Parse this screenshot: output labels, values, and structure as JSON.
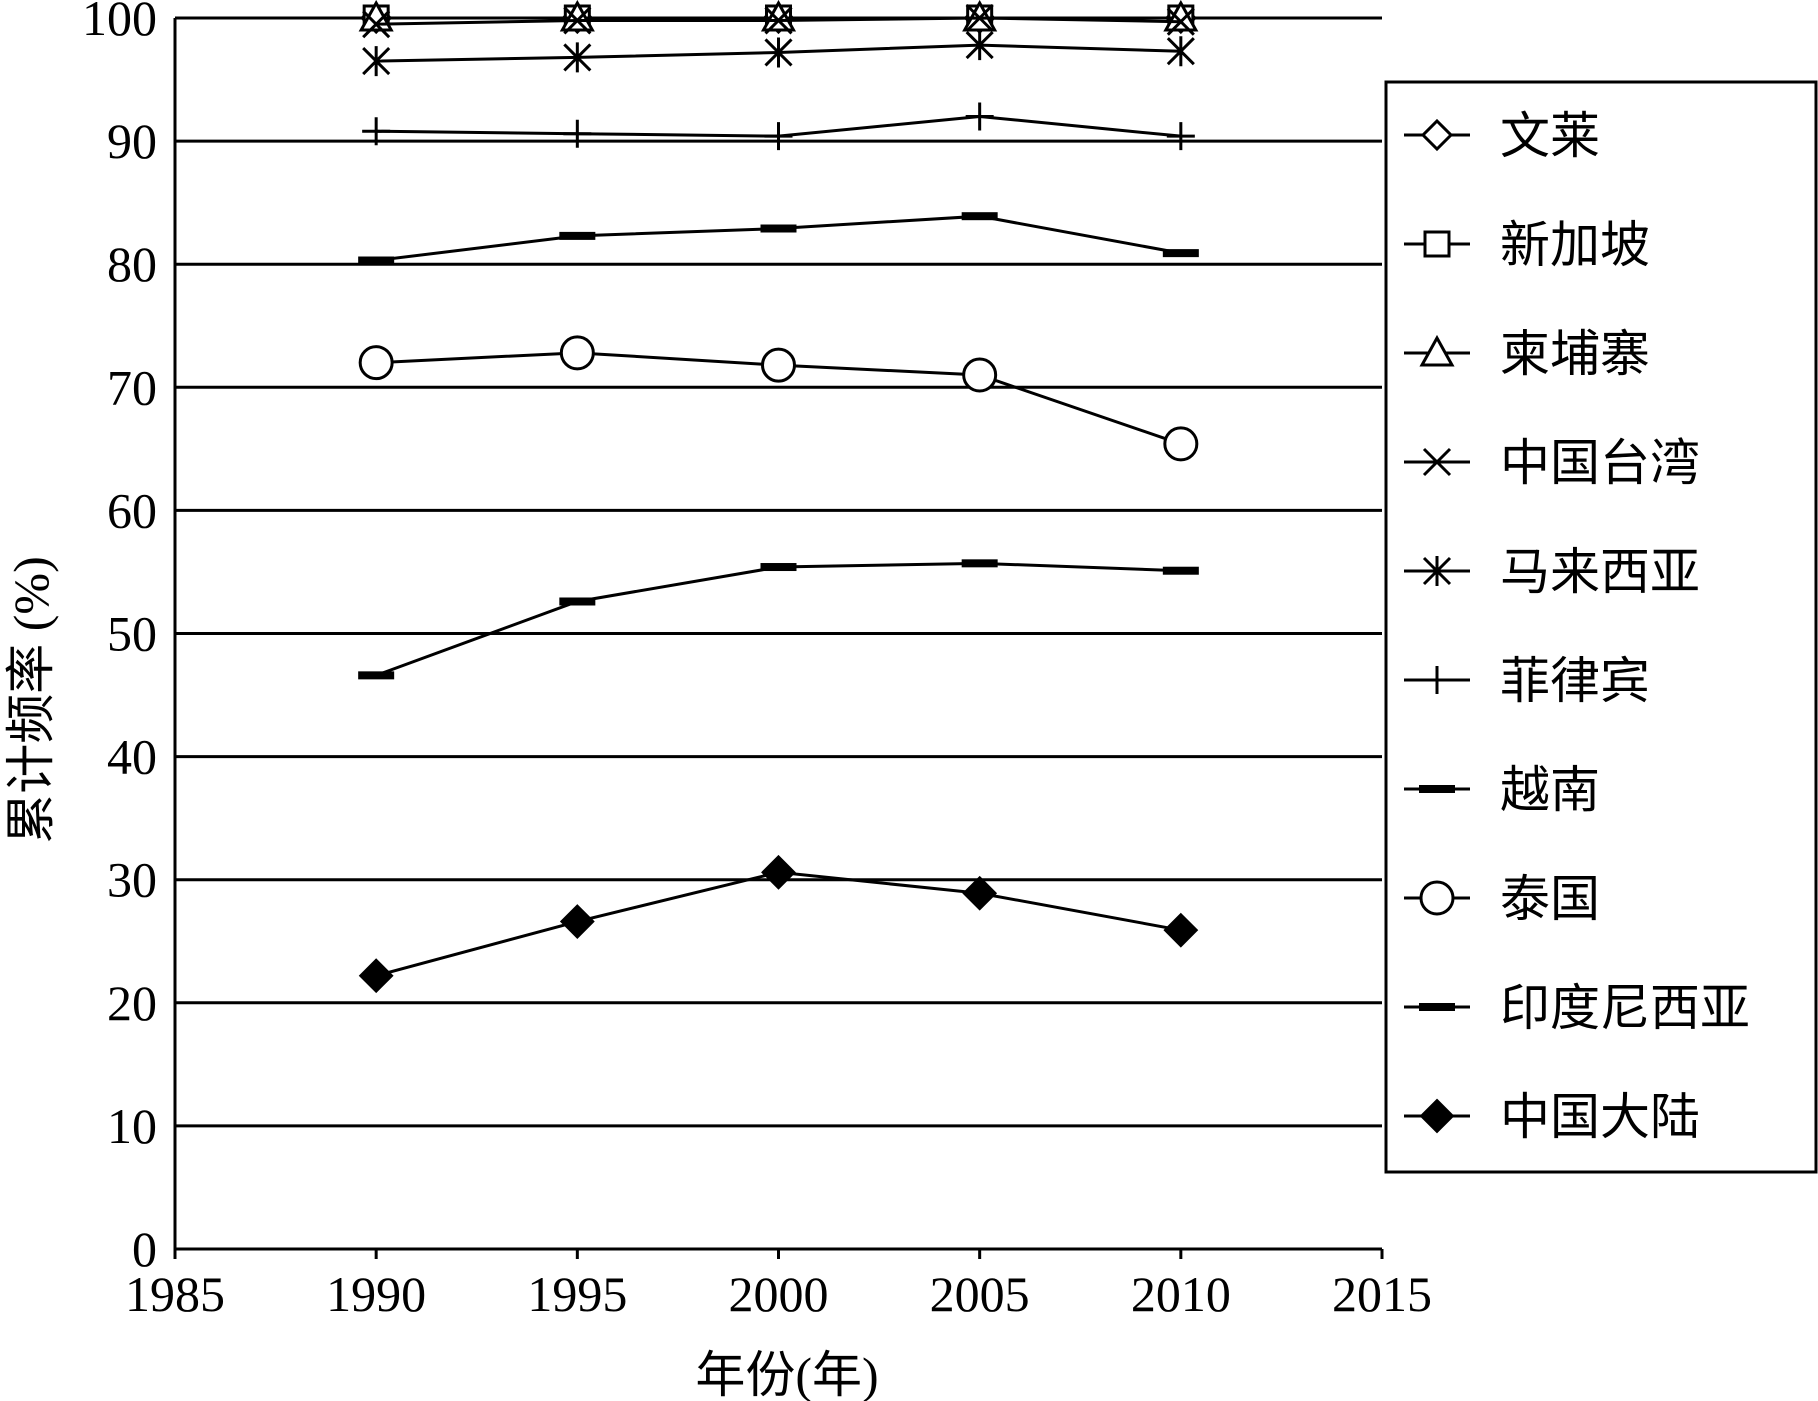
{
  "chart_data": {
    "type": "line",
    "title": "",
    "xlabel": "年份(年)",
    "ylabel": "累计频率 (%)",
    "xlim": [
      1985,
      2015
    ],
    "ylim": [
      0,
      100
    ],
    "x_ticks": [
      "1985",
      "1990",
      "1995",
      "2000",
      "2005",
      "2010",
      "2015"
    ],
    "y_ticks": [
      "0",
      "10",
      "20",
      "30",
      "40",
      "50",
      "60",
      "70",
      "80",
      "90",
      "100"
    ],
    "grid": "horizontal",
    "legend_position": "right",
    "x": [
      1990,
      1995,
      2000,
      2005,
      2010
    ],
    "series": [
      {
        "name": "文莱",
        "marker": "diamond-open",
        "values": [
          100,
          100,
          100,
          100,
          100
        ]
      },
      {
        "name": "新加坡",
        "marker": "square-open",
        "values": [
          100,
          100,
          100,
          100,
          100
        ]
      },
      {
        "name": "柬埔寨",
        "marker": "triangle-open",
        "values": [
          100,
          100,
          100,
          100,
          100
        ]
      },
      {
        "name": "中国台湾",
        "marker": "x",
        "values": [
          99.5,
          99.8,
          99.8,
          100,
          99.7
        ]
      },
      {
        "name": "马来西亚",
        "marker": "asterisk",
        "values": [
          96.5,
          96.8,
          97.2,
          97.8,
          97.3
        ]
      },
      {
        "name": "菲律宾",
        "marker": "plus",
        "values": [
          90.8,
          90.6,
          90.4,
          92.0,
          90.4
        ]
      },
      {
        "name": "越南",
        "marker": "dash",
        "values": [
          80.3,
          82.3,
          82.9,
          83.9,
          80.9
        ]
      },
      {
        "name": "泰国",
        "marker": "circle-open",
        "values": [
          72.0,
          72.8,
          71.8,
          71.0,
          65.4
        ]
      },
      {
        "name": "印度尼西亚",
        "marker": "dash",
        "values": [
          46.6,
          52.6,
          55.4,
          55.7,
          55.1
        ]
      },
      {
        "name": "中国大陆",
        "marker": "diamond-filled",
        "values": [
          22.2,
          26.6,
          30.6,
          28.9,
          25.9
        ]
      }
    ]
  }
}
